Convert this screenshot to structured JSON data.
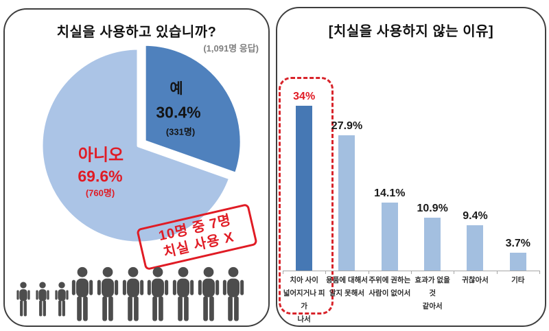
{
  "left_panel": {
    "title": "치실을 사용하고 있습니까?",
    "respondents_note": "(1,091명 응답)",
    "stamp": {
      "line1": "10명 중 7명",
      "line2": "치실 사용 X"
    },
    "people": {
      "small_count": 3,
      "large_count": 7,
      "color": "#4d4d4d"
    }
  },
  "right_panel": {
    "title": "[치실을 사용하지 않는 이유]"
  },
  "colors": {
    "pie_yes": "#4f81bd",
    "pie_no": "#abc4e6",
    "bar_highlight": "#4678b4",
    "bar_normal": "#a3bfe0",
    "red_accent": "#e01b24",
    "panel_border": "#3e3e3e",
    "axis_gray": "#a6a6a6"
  },
  "chart_data": [
    {
      "type": "pie",
      "title": "치실을 사용하고 있습니까?",
      "subtitle": "(1,091명 응답)",
      "slices": [
        {
          "label": "예",
          "percent": 30.4,
          "count_label": "(331명)",
          "color": "#4f81bd",
          "exploded": true
        },
        {
          "label": "아니오",
          "percent": 69.6,
          "count_label": "(760명)",
          "color": "#abc4e6",
          "exploded": false
        }
      ],
      "annotation": "10명 중 7명 치실 사용 X",
      "start_angle_deg": 0,
      "direction": "clockwise"
    },
    {
      "type": "bar",
      "title": "[치실을 사용하지 않는 이유]",
      "categories": [
        "치아 사이\n넓어지거나 피가\n나서",
        "용품에 대해서\n알지 못해서",
        "주위에 권하는\n사람이 없어서",
        "효과가 없을 것\n같아서",
        "귀찮아서",
        "기타"
      ],
      "values": [
        34,
        27.9,
        14.1,
        10.9,
        9.4,
        3.7
      ],
      "value_labels": [
        "34%",
        "27.9%",
        "14.1%",
        "10.9%",
        "9.4%",
        "3.7%"
      ],
      "highlighted_index": 0,
      "ylim": [
        0,
        34
      ],
      "grid": false,
      "legend": false
    }
  ]
}
